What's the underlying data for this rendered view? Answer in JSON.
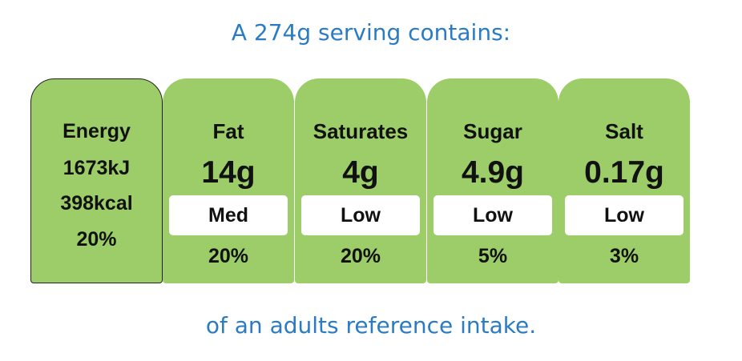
{
  "header": {
    "title": "A 274g serving contains:"
  },
  "energy": {
    "lines": [
      "Energy",
      "1673kJ",
      "398kcal",
      "20%"
    ]
  },
  "nutrients": [
    {
      "name": "Fat",
      "amount": "14g",
      "level": "Med",
      "percent": "20%"
    },
    {
      "name": "Saturates",
      "amount": "4g",
      "level": "Low",
      "percent": "20%"
    },
    {
      "name": "Sugar",
      "amount": "4.9g",
      "level": "Low",
      "percent": "5%"
    },
    {
      "name": "Salt",
      "amount": "0.17g",
      "level": "Low",
      "percent": "3%"
    }
  ],
  "footer": {
    "text": "of an adults reference intake."
  }
}
